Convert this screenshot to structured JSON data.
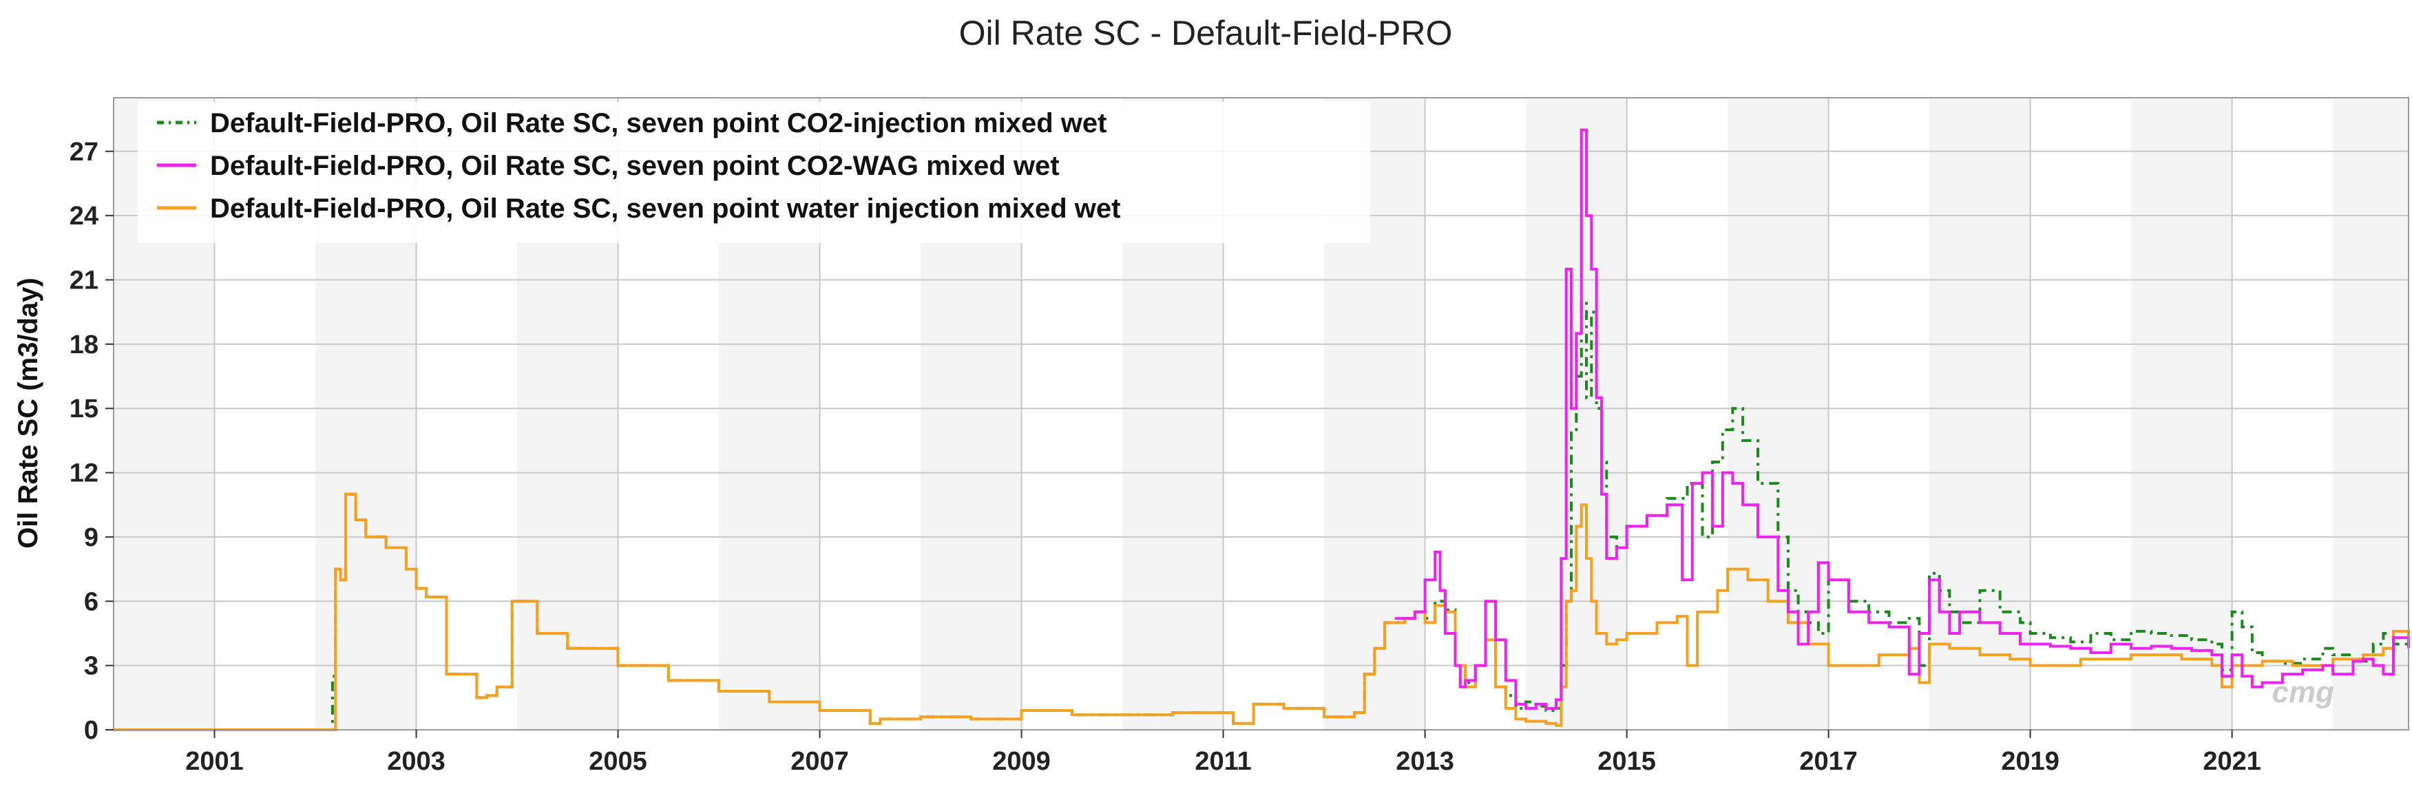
{
  "chart_data": {
    "type": "line",
    "title": "Oil Rate SC - Default-Field-PRO",
    "xlabel": "",
    "ylabel": "Oil Rate SC (m3/day)",
    "xlim": [
      2000.0,
      2022.75
    ],
    "ylim": [
      0,
      29.5
    ],
    "x_ticks": [
      2001,
      2003,
      2005,
      2007,
      2009,
      2011,
      2013,
      2015,
      2017,
      2019,
      2021
    ],
    "x_tick_labels": [
      "2001",
      "2003",
      "2005",
      "2007",
      "2009",
      "2011",
      "2013",
      "2015",
      "2017",
      "2019",
      "2021"
    ],
    "y_ticks": [
      0,
      3,
      6,
      9,
      12,
      15,
      18,
      21,
      24,
      27
    ],
    "y_tick_labels": [
      "0",
      "3",
      "6",
      "9",
      "12",
      "15",
      "18",
      "21",
      "24",
      "27"
    ],
    "grid": true,
    "legend_position": "top-left",
    "watermark": "cmg",
    "series": [
      {
        "name": "Default-Field-PRO, Oil Rate SC, seven point CO2-injection mixed wet",
        "color": "#1a8a1a",
        "style": "dashdot",
        "x": [
          2000.0,
          2002.15,
          2002.17,
          2002.2,
          2002.25,
          2002.3,
          2002.4,
          2002.5,
          2002.7,
          2002.9,
          2003.0,
          2003.1,
          2003.3,
          2003.6,
          2003.7,
          2003.8,
          2003.95,
          2004.2,
          2004.5,
          2005.0,
          2005.5,
          2006.0,
          2006.5,
          2007.0,
          2007.5,
          2007.6,
          2008.0,
          2008.5,
          2009.0,
          2009.5,
          2010.0,
          2010.5,
          2011.0,
          2011.1,
          2011.3,
          2011.6,
          2012.0,
          2012.3,
          2012.4,
          2012.5,
          2012.6,
          2012.8,
          2012.9,
          2013.0,
          2013.1,
          2013.2,
          2013.3,
          2013.4,
          2013.5,
          2013.6,
          2013.7,
          2013.8,
          2013.9,
          2014.0,
          2014.1,
          2014.2,
          2014.3,
          2014.35,
          2014.4,
          2014.45,
          2014.5,
          2014.55,
          2014.6,
          2014.65,
          2014.7,
          2014.75,
          2014.8,
          2014.9,
          2015.0,
          2015.2,
          2015.4,
          2015.6,
          2015.75,
          2015.85,
          2015.95,
          2016.05,
          2016.15,
          2016.3,
          2016.5,
          2016.6,
          2016.7,
          2016.8,
          2016.9,
          2017.0,
          2017.2,
          2017.4,
          2017.6,
          2017.8,
          2017.9,
          2018.0,
          2018.1,
          2018.2,
          2018.3,
          2018.5,
          2018.7,
          2018.9,
          2019.0,
          2019.2,
          2019.4,
          2019.6,
          2019.8,
          2020.0,
          2020.2,
          2020.4,
          2020.6,
          2020.8,
          2020.9,
          2021.0,
          2021.1,
          2021.2,
          2021.3,
          2021.5,
          2021.7,
          2021.9,
          2022.0,
          2022.2,
          2022.4,
          2022.5,
          2022.6,
          2022.75
        ],
        "y": [
          0,
          0,
          2.5,
          7.5,
          7.0,
          11.0,
          9.8,
          9.0,
          8.5,
          7.5,
          6.6,
          6.2,
          2.6,
          1.5,
          1.6,
          2.0,
          6.0,
          4.5,
          3.8,
          3.0,
          2.3,
          1.8,
          1.3,
          0.9,
          0.3,
          0.5,
          0.6,
          0.5,
          0.9,
          0.7,
          0.7,
          0.8,
          0.8,
          0.3,
          1.2,
          1.0,
          0.6,
          0.8,
          2.6,
          3.8,
          5.0,
          5.2,
          5.5,
          5.2,
          6.0,
          5.6,
          3.0,
          2.2,
          3.0,
          4.2,
          2.0,
          1.6,
          1.0,
          1.3,
          1.1,
          0.9,
          1.0,
          3.0,
          6.0,
          14.0,
          16.5,
          20.0,
          15.5,
          19.5,
          15.0,
          12.5,
          9.0,
          8.5,
          9.5,
          10.0,
          10.8,
          11.5,
          9.0,
          12.5,
          14.0,
          15.0,
          13.5,
          11.5,
          9.0,
          6.5,
          5.5,
          5.0,
          4.5,
          7.0,
          6.0,
          5.5,
          5.0,
          5.2,
          3.0,
          7.3,
          6.5,
          5.5,
          5.0,
          6.5,
          5.5,
          5.0,
          4.5,
          4.3,
          4.1,
          4.5,
          4.2,
          4.6,
          4.5,
          4.4,
          4.2,
          4.0,
          2.8,
          5.5,
          4.8,
          3.6,
          3.2,
          3.1,
          3.3,
          3.8,
          3.5,
          3.2,
          4.0,
          4.5,
          4.0,
          4.3
        ]
      },
      {
        "name": "Default-Field-PRO, Oil Rate SC, seven point CO2-WAG mixed wet",
        "color": "#ee22ee",
        "style": "solid",
        "x": [
          2012.7,
          2012.9,
          2013.0,
          2013.1,
          2013.15,
          2013.2,
          2013.3,
          2013.35,
          2013.4,
          2013.5,
          2013.6,
          2013.7,
          2013.8,
          2013.9,
          2014.0,
          2014.1,
          2014.2,
          2014.3,
          2014.35,
          2014.4,
          2014.45,
          2014.5,
          2014.55,
          2014.6,
          2014.65,
          2014.7,
          2014.75,
          2014.8,
          2014.9,
          2015.0,
          2015.2,
          2015.4,
          2015.55,
          2015.65,
          2015.75,
          2015.85,
          2015.95,
          2016.05,
          2016.15,
          2016.3,
          2016.5,
          2016.6,
          2016.7,
          2016.8,
          2016.9,
          2017.0,
          2017.2,
          2017.4,
          2017.6,
          2017.8,
          2017.9,
          2018.0,
          2018.1,
          2018.2,
          2018.3,
          2018.5,
          2018.7,
          2018.9,
          2019.0,
          2019.2,
          2019.4,
          2019.6,
          2019.8,
          2020.0,
          2020.2,
          2020.4,
          2020.6,
          2020.8,
          2020.9,
          2021.0,
          2021.1,
          2021.2,
          2021.3,
          2021.5,
          2021.7,
          2021.9,
          2022.0,
          2022.2,
          2022.3,
          2022.4,
          2022.5,
          2022.6,
          2022.75
        ],
        "y": [
          5.2,
          5.5,
          7.0,
          8.3,
          6.5,
          4.5,
          3.0,
          2.0,
          2.3,
          3.0,
          6.0,
          4.2,
          2.3,
          1.2,
          1.0,
          1.2,
          1.0,
          1.4,
          8.0,
          21.5,
          15.0,
          18.5,
          28.0,
          24.0,
          21.5,
          15.5,
          11.0,
          8.0,
          8.5,
          9.5,
          10.0,
          10.5,
          7.0,
          11.5,
          12.0,
          9.5,
          12.0,
          11.5,
          10.5,
          9.0,
          6.5,
          5.5,
          4.0,
          5.5,
          7.8,
          7.0,
          5.5,
          5.0,
          4.8,
          2.6,
          4.5,
          7.0,
          5.5,
          4.5,
          5.5,
          5.0,
          4.5,
          4.0,
          4.0,
          3.9,
          3.8,
          3.6,
          4.0,
          3.8,
          3.9,
          3.8,
          3.7,
          3.5,
          2.5,
          3.5,
          2.5,
          2.0,
          2.2,
          2.6,
          2.8,
          3.0,
          2.6,
          3.2,
          3.3,
          3.0,
          2.6,
          4.3,
          3.8
        ]
      },
      {
        "name": "Default-Field-PRO, Oil Rate SC, seven point water injection mixed wet",
        "color": "#f4a020",
        "style": "solid",
        "x": [
          2000.0,
          2002.15,
          2002.17,
          2002.2,
          2002.25,
          2002.3,
          2002.4,
          2002.5,
          2002.7,
          2002.9,
          2003.0,
          2003.1,
          2003.3,
          2003.6,
          2003.7,
          2003.8,
          2003.95,
          2004.2,
          2004.5,
          2005.0,
          2005.5,
          2006.0,
          2006.5,
          2007.0,
          2007.5,
          2007.6,
          2008.0,
          2008.5,
          2009.0,
          2009.5,
          2010.0,
          2010.5,
          2011.0,
          2011.1,
          2011.3,
          2011.6,
          2012.0,
          2012.3,
          2012.4,
          2012.5,
          2012.6,
          2012.8,
          2012.9,
          2013.0,
          2013.1,
          2013.2,
          2013.3,
          2013.4,
          2013.5,
          2013.6,
          2013.7,
          2013.8,
          2013.9,
          2014.0,
          2014.2,
          2014.3,
          2014.35,
          2014.4,
          2014.45,
          2014.5,
          2014.55,
          2014.6,
          2014.65,
          2014.7,
          2014.8,
          2014.9,
          2015.0,
          2015.3,
          2015.5,
          2015.6,
          2015.7,
          2015.9,
          2016.0,
          2016.2,
          2016.4,
          2016.6,
          2016.8,
          2017.0,
          2017.5,
          2017.8,
          2017.9,
          2018.0,
          2018.2,
          2018.5,
          2018.8,
          2019.0,
          2019.5,
          2020.0,
          2020.5,
          2020.8,
          2020.9,
          2021.0,
          2021.3,
          2021.6,
          2022.0,
          2022.3,
          2022.5,
          2022.6,
          2022.75
        ],
        "y": [
          0,
          0,
          0,
          7.5,
          7.0,
          11.0,
          9.8,
          9.0,
          8.5,
          7.5,
          6.6,
          6.2,
          2.6,
          1.5,
          1.6,
          2.0,
          6.0,
          4.5,
          3.8,
          3.0,
          2.3,
          1.8,
          1.3,
          0.9,
          0.3,
          0.5,
          0.6,
          0.5,
          0.9,
          0.7,
          0.7,
          0.8,
          0.8,
          0.3,
          1.2,
          1.0,
          0.6,
          0.8,
          2.6,
          3.8,
          5.0,
          5.2,
          5.5,
          5.0,
          5.8,
          5.5,
          3.0,
          2.0,
          3.0,
          4.2,
          2.0,
          1.0,
          0.5,
          0.4,
          0.3,
          0.2,
          2.0,
          6.0,
          6.5,
          9.5,
          10.5,
          8.0,
          6.0,
          4.5,
          4.0,
          4.2,
          4.5,
          5.0,
          5.3,
          3.0,
          5.5,
          6.5,
          7.5,
          7.0,
          6.0,
          5.0,
          4.0,
          3.0,
          3.5,
          3.8,
          2.2,
          4.0,
          3.8,
          3.5,
          3.3,
          3.0,
          3.3,
          3.5,
          3.3,
          3.0,
          2.0,
          3.0,
          3.2,
          3.0,
          3.3,
          3.5,
          3.8,
          4.6,
          3.8
        ]
      }
    ]
  }
}
